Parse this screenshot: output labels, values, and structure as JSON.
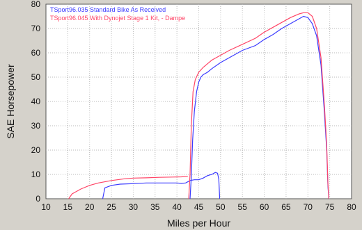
{
  "chart_data": {
    "type": "line",
    "xlabel": "Miles per Hour",
    "ylabel": "SAE Horsepower",
    "xlim": [
      10,
      80
    ],
    "ylim": [
      0,
      80
    ],
    "x_ticks": [
      10,
      15,
      20,
      25,
      30,
      35,
      40,
      45,
      50,
      55,
      60,
      65,
      70,
      75,
      80
    ],
    "y_ticks": [
      0,
      10,
      20,
      30,
      40,
      50,
      60,
      70,
      80
    ],
    "grid": true,
    "legend_position": "top-left",
    "colors": {
      "background": "#d5d2cb",
      "plot_background": "#ffffff",
      "grid": "#b8b8b8"
    },
    "series": [
      {
        "name": "TSport96.035  Standard Bike As Received",
        "color": "#3b3bff",
        "low_x": [
          23,
          23.5,
          25,
          27,
          30,
          33,
          36,
          38,
          40,
          41,
          42,
          43,
          44,
          45,
          46,
          47,
          48,
          48.8,
          49.3,
          49.6,
          49.8
        ],
        "low_y": [
          0,
          4.5,
          5.5,
          6,
          6.2,
          6.5,
          6.5,
          6.5,
          6.5,
          6.3,
          6.5,
          7.5,
          7.8,
          7.8,
          8.5,
          9.5,
          10,
          10.8,
          10.5,
          8,
          0
        ],
        "x": [
          43,
          43.3,
          43.6,
          44,
          44.5,
          45,
          45.5,
          46,
          47,
          48,
          50,
          52,
          55,
          58,
          60,
          62,
          64,
          66,
          68,
          69,
          70,
          71,
          72,
          73,
          73.8,
          74.3,
          74.6,
          74.8
        ],
        "y": [
          0,
          9,
          24,
          36,
          44,
          48,
          50,
          51,
          52,
          53.5,
          56,
          58,
          61,
          63,
          65.5,
          67.5,
          70,
          72,
          74,
          75,
          74.5,
          72,
          67,
          55,
          35,
          20,
          5,
          0
        ]
      },
      {
        "name": "TSport96.045  With Dynojet Stage 1 Kit, - Dampe",
        "color": "#ff4466",
        "low_x": [
          15.2,
          16,
          18,
          20,
          22,
          25,
          28,
          30,
          33,
          36,
          39,
          41,
          42.5
        ],
        "low_y": [
          0,
          2,
          4,
          5.5,
          6.5,
          7.5,
          8.2,
          8.5,
          8.6,
          8.8,
          8.9,
          9,
          9.2
        ],
        "x": [
          42.7,
          43,
          43.3,
          43.7,
          44.2,
          45,
          46,
          47,
          48,
          50,
          52,
          55,
          58,
          60,
          62,
          64,
          66,
          68,
          69,
          70,
          71,
          72,
          73,
          73.8,
          74.3,
          74.6,
          74.8
        ],
        "y": [
          0,
          10,
          30,
          44,
          49,
          52,
          54,
          55.5,
          57,
          59,
          61,
          63.5,
          66,
          68.5,
          70.5,
          72.5,
          74.5,
          76,
          76.5,
          76.5,
          75,
          70,
          58,
          38,
          22,
          6,
          0
        ]
      }
    ]
  }
}
